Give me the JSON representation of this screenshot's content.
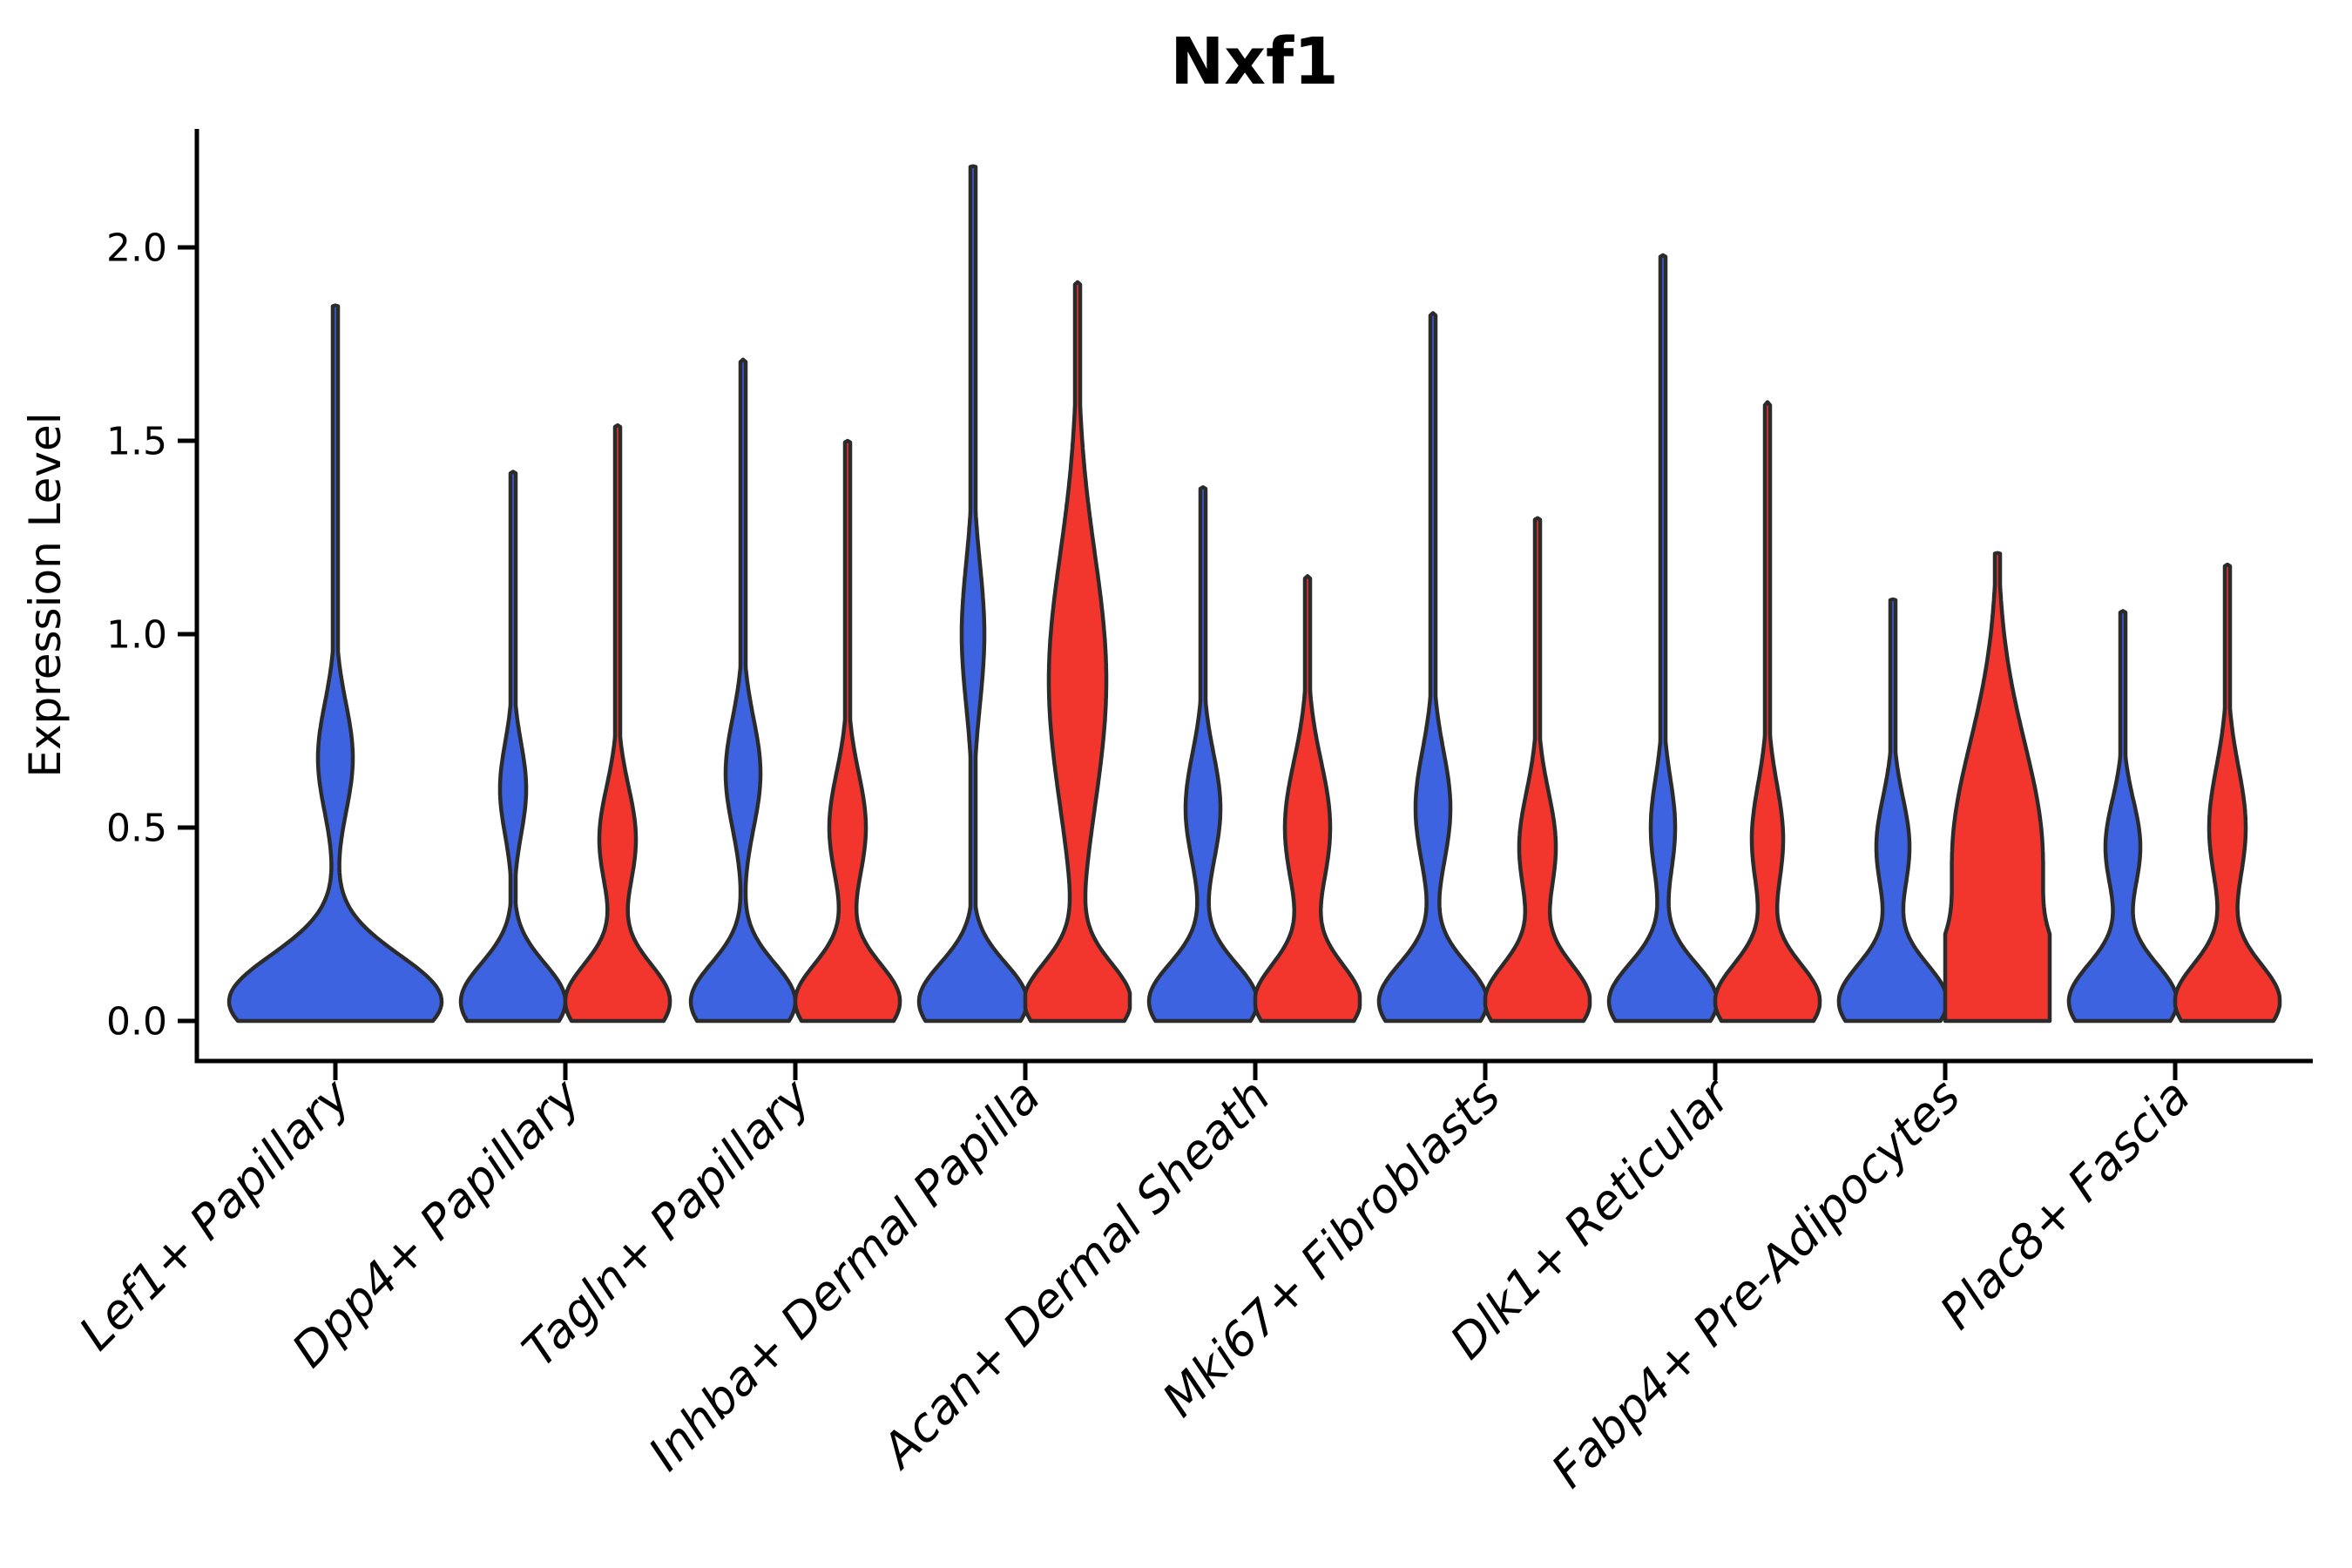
{
  "figure": {
    "title": "Nxf1",
    "background": "#ffffff"
  },
  "chart_data": {
    "type": "violin",
    "title": "Nxf1",
    "xlabel": "",
    "ylabel": "Expression Level",
    "grid": false,
    "legend": null,
    "ylim": [
      -0.12,
      2.35
    ],
    "yticks": [
      0,
      0.5,
      1.0,
      1.5,
      2.0
    ],
    "ytick_labels": [
      "0.0",
      "0.5",
      "1.0",
      "1.5",
      "2.0"
    ],
    "categories": [
      "Lef1+ Papillary",
      "Dpp4+ Papillary",
      "Tagln+ Papillary",
      "Inhba+ Dermal Papilla",
      "Acan+ Dermal Sheath",
      "Mki67+ Fibroblasts",
      "Dlk1+ Reticular",
      "Fabp4+ Pre-Adipocytes",
      "Plac8+ Fascia"
    ],
    "series": [
      {
        "name": "blue",
        "color": "#3D63E0",
        "max_expression": [
          1.85,
          1.42,
          1.71,
          2.21,
          1.38,
          1.83,
          1.98,
          1.09,
          1.06
        ],
        "base_halfwidth": [
          122,
          60,
          60,
          62,
          62,
          62,
          62,
          62,
          62
        ],
        "base_spread": [
          0.17,
          0.14,
          0.14,
          0.14,
          0.14,
          0.14,
          0.14,
          0.14,
          0.14
        ],
        "bulges": [
          {
            "center": 0.68,
            "spread": 0.2,
            "halfwidth": 20
          },
          {
            "center": 0.6,
            "spread": 0.17,
            "halfwidth": 15
          },
          {
            "center": 0.64,
            "spread": 0.2,
            "halfwidth": 20
          },
          {
            "center": 1.0,
            "spread": 0.26,
            "halfwidth": 13
          },
          {
            "center": 0.55,
            "spread": 0.2,
            "halfwidth": 20
          },
          {
            "center": 0.55,
            "spread": 0.21,
            "halfwidth": 20
          },
          {
            "center": 0.5,
            "spread": 0.18,
            "halfwidth": 14
          },
          {
            "center": 0.45,
            "spread": 0.18,
            "halfwidth": 19
          },
          {
            "center": 0.45,
            "spread": 0.17,
            "halfwidth": 20
          }
        ]
      },
      {
        "name": "red",
        "color": "#F2362E",
        "max_expression": [
          null,
          1.54,
          1.5,
          1.91,
          1.15,
          1.3,
          1.6,
          1.21,
          1.18
        ],
        "base_halfwidth": [
          null,
          60,
          60,
          60,
          60,
          60,
          60,
          60,
          60
        ],
        "base_spread": [
          null,
          0.14,
          0.14,
          0.14,
          0.14,
          0.14,
          0.14,
          0.16,
          0.14
        ],
        "bulges": [
          null,
          {
            "center": 0.47,
            "spread": 0.19,
            "halfwidth": 21
          },
          {
            "center": 0.5,
            "spread": 0.2,
            "halfwidth": 21
          },
          {
            "center": 0.88,
            "spread": 0.46,
            "halfwidth": 33
          },
          {
            "center": 0.5,
            "spread": 0.24,
            "halfwidth": 26
          },
          {
            "center": 0.45,
            "spread": 0.2,
            "halfwidth": 21
          },
          {
            "center": 0.47,
            "spread": 0.2,
            "halfwidth": 18
          },
          {
            "center": 0.42,
            "spread": 0.42,
            "halfwidth": 52
          },
          {
            "center": 0.5,
            "spread": 0.22,
            "halfwidth": 21
          }
        ]
      }
    ],
    "style": {
      "violin_outline": "#2b2b2b",
      "axis_color": "#000000"
    }
  }
}
